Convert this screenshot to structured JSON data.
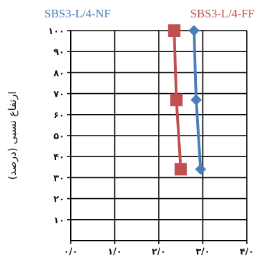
{
  "chart_data": {
    "type": "line",
    "ylabel": "ارتفاع نسبی (درصد)",
    "xlim": [
      0,
      4
    ],
    "ylim": [
      0,
      100
    ],
    "grid": true,
    "x_ticks": [
      {
        "value": 0,
        "label": "۰/۰"
      },
      {
        "value": 1,
        "label": "۱/۰"
      },
      {
        "value": 2,
        "label": "۲/۰"
      },
      {
        "value": 3,
        "label": "۳/۰"
      },
      {
        "value": 4,
        "label": "۴/۰"
      }
    ],
    "y_ticks": [
      {
        "value": 10,
        "label": "۱۰"
      },
      {
        "value": 20,
        "label": "۲۰"
      },
      {
        "value": 30,
        "label": "۳۰"
      },
      {
        "value": 40,
        "label": "۴۰"
      },
      {
        "value": 50,
        "label": "۵۰"
      },
      {
        "value": 60,
        "label": "۶۰"
      },
      {
        "value": 70,
        "label": "۷۰"
      },
      {
        "value": 80,
        "label": "۸۰"
      },
      {
        "value": 90,
        "label": "۹۰"
      },
      {
        "value": 100,
        "label": "۱۰۰"
      }
    ],
    "series": [
      {
        "name": "SBS3-L/4-NF",
        "color": "#4a7ebb",
        "marker": "diamond",
        "points": [
          {
            "x": 2.8,
            "y": 100
          },
          {
            "x": 2.85,
            "y": 67
          },
          {
            "x": 2.95,
            "y": 34
          }
        ]
      },
      {
        "name": "SBS3-L/4-FF",
        "color": "#c0504d",
        "marker": "square",
        "points": [
          {
            "x": 2.35,
            "y": 100
          },
          {
            "x": 2.4,
            "y": 67
          },
          {
            "x": 2.5,
            "y": 34
          }
        ]
      }
    ],
    "legend": "top"
  }
}
